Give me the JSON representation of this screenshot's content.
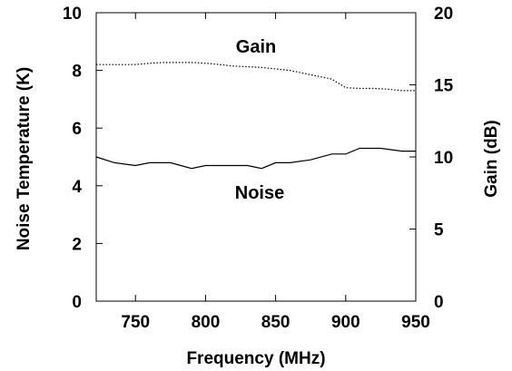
{
  "chart_data": {
    "type": "line",
    "xlabel": "Frequency (MHz)",
    "ylabel": "Noise Temperature (K)",
    "y2label": "Gain (dB)",
    "xlim": [
      722,
      950
    ],
    "ylim": [
      0,
      10
    ],
    "y2lim": [
      0,
      20
    ],
    "xticks": [
      750,
      800,
      850,
      900,
      950
    ],
    "yticks": [
      0,
      2,
      4,
      6,
      8,
      10
    ],
    "y2ticks": [
      0,
      5,
      10,
      15,
      20
    ],
    "grid": false,
    "annotations": [
      "Gain",
      "Noise"
    ],
    "series": [
      {
        "name": "Gain",
        "axis": "right",
        "style": "dotted",
        "x": [
          722,
          740,
          750,
          760,
          770,
          780,
          790,
          800,
          810,
          820,
          830,
          840,
          850,
          860,
          870,
          880,
          890,
          900,
          910,
          920,
          930,
          940,
          950
        ],
        "values": [
          16.4,
          16.4,
          16.4,
          16.5,
          16.55,
          16.55,
          16.55,
          16.5,
          16.4,
          16.3,
          16.25,
          16.2,
          16.1,
          16.0,
          15.8,
          15.6,
          15.4,
          14.8,
          14.75,
          14.75,
          14.7,
          14.6,
          14.6
        ]
      },
      {
        "name": "Noise",
        "axis": "left",
        "style": "solid",
        "x": [
          722,
          735,
          750,
          760,
          775,
          790,
          800,
          810,
          830,
          840,
          850,
          860,
          875,
          890,
          900,
          910,
          925,
          940,
          950
        ],
        "values": [
          5.0,
          4.8,
          4.7,
          4.8,
          4.8,
          4.6,
          4.7,
          4.7,
          4.7,
          4.6,
          4.8,
          4.8,
          4.9,
          5.1,
          5.1,
          5.3,
          5.3,
          5.2,
          5.2
        ]
      }
    ]
  }
}
